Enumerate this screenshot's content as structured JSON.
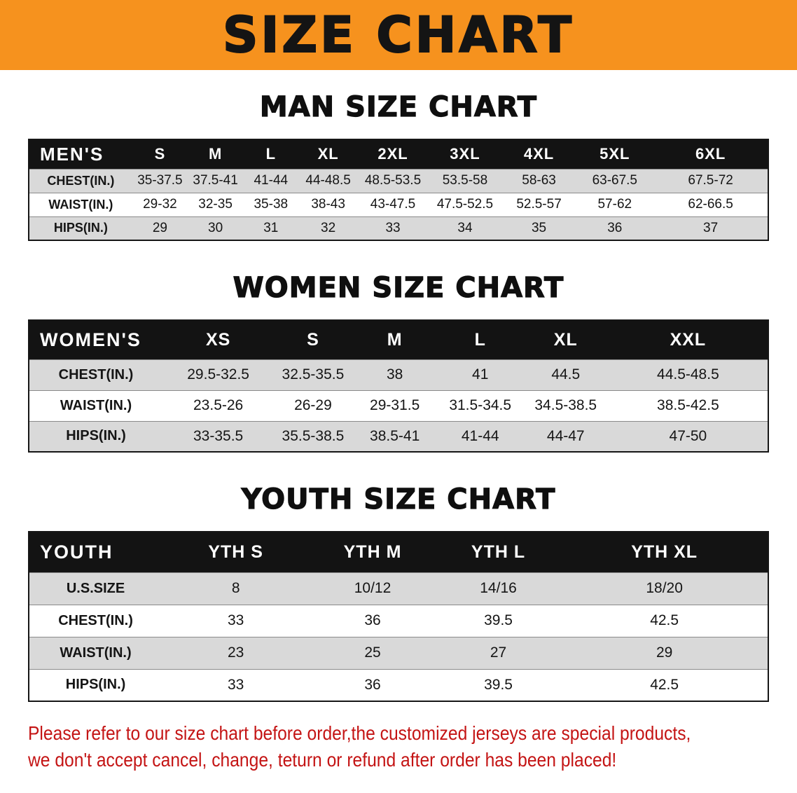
{
  "banner": {
    "title": "SIZE CHART",
    "bg_color": "#f6921e"
  },
  "sections": [
    {
      "id": "men",
      "heading": "MAN SIZE CHART",
      "table": {
        "header": [
          "MEN'S",
          "S",
          "M",
          "L",
          "XL",
          "2XL",
          "3XL",
          "4XL",
          "5XL",
          "6XL"
        ],
        "rows": [
          [
            "CHEST(IN.)",
            "35-37.5",
            "37.5-41",
            "41-44",
            "44-48.5",
            "48.5-53.5",
            "53.5-58",
            "58-63",
            "63-67.5",
            "67.5-72"
          ],
          [
            "WAIST(IN.)",
            "29-32",
            "32-35",
            "35-38",
            "38-43",
            "43-47.5",
            "47.5-52.5",
            "52.5-57",
            "57-62",
            "62-66.5"
          ],
          [
            "HIPS(IN.)",
            "29",
            "30",
            "31",
            "32",
            "33",
            "34",
            "35",
            "36",
            "37"
          ]
        ]
      }
    },
    {
      "id": "women",
      "heading": "WOMEN SIZE CHART",
      "table": {
        "header": [
          "WOMEN'S",
          "XS",
          "S",
          "M",
          "L",
          "XL",
          "XXL"
        ],
        "rows": [
          [
            "CHEST(IN.)",
            "29.5-32.5",
            "32.5-35.5",
            "38",
            "41",
            "44.5",
            "44.5-48.5"
          ],
          [
            "WAIST(IN.)",
            "23.5-26",
            "26-29",
            "29-31.5",
            "31.5-34.5",
            "34.5-38.5",
            "38.5-42.5"
          ],
          [
            "HIPS(IN.)",
            "33-35.5",
            "35.5-38.5",
            "38.5-41",
            "41-44",
            "44-47",
            "47-50"
          ]
        ]
      }
    },
    {
      "id": "youth",
      "heading": "YOUTH SIZE CHART",
      "table": {
        "header": [
          "YOUTH",
          "YTH S",
          "YTH M",
          "YTH L",
          "YTH XL"
        ],
        "rows": [
          [
            "U.S.SIZE",
            "8",
            "10/12",
            "14/16",
            "18/20"
          ],
          [
            "CHEST(IN.)",
            "33",
            "36",
            "39.5",
            "42.5"
          ],
          [
            "WAIST(IN.)",
            "23",
            "25",
            "27",
            "29"
          ],
          [
            "HIPS(IN.)",
            "33",
            "36",
            "39.5",
            "42.5"
          ]
        ]
      }
    }
  ],
  "footer": {
    "line1": "Please refer to our size chart before order,the customized jerseys are special products,",
    "line2": "we don't accept cancel, change, teturn or refund after order has been placed!",
    "color": "#c41414"
  }
}
